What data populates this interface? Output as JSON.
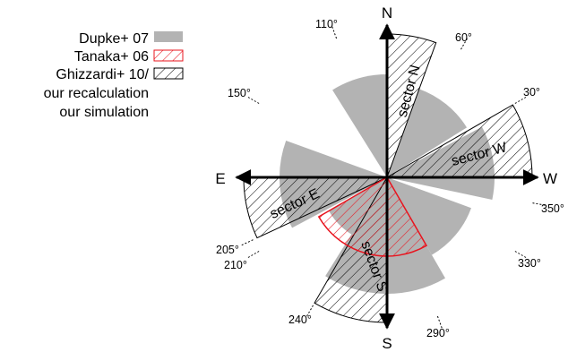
{
  "legend": {
    "items": [
      {
        "label": "Dupke+ 07",
        "swatch": "gray-fill"
      },
      {
        "label": "Tanaka+ 06",
        "swatch": "red-hatch"
      },
      {
        "label": "Ghizzardi+ 10/",
        "swatch": "black-hatch"
      },
      {
        "label": "our recalculation",
        "swatch": ""
      },
      {
        "label": "our simulation",
        "swatch": ""
      }
    ]
  },
  "compass": {
    "north": "N",
    "south": "S",
    "east": "E",
    "west": "W"
  },
  "angle_labels": [
    "110°",
    "60°",
    "150°",
    "30°",
    "350°",
    "205°",
    "210°",
    "330°",
    "240°",
    "290°"
  ],
  "sector_labels": {
    "north": "sector N",
    "west": "sector W",
    "east": "sector E",
    "south": "sector S"
  },
  "colors": {
    "gray_fill": "#b3b3b3",
    "red_hatch": "#e8141e",
    "black_hatch": "#000000",
    "axis": "#000000"
  }
}
